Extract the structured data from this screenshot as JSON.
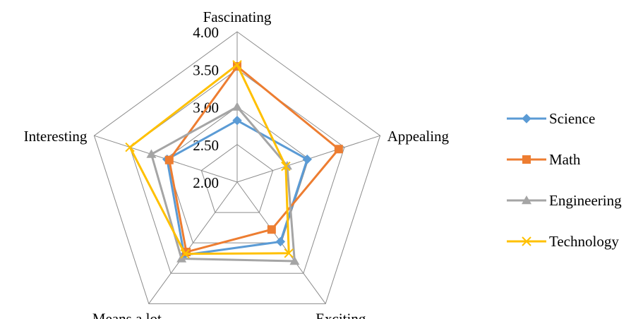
{
  "chart_data": {
    "type": "radar",
    "categories": [
      "Fascinating",
      "Appealing",
      "Exciting",
      "Means a lot",
      "Interesting"
    ],
    "rmin": 2.0,
    "rmax": 4.0,
    "ticks": [
      2.0,
      2.5,
      3.0,
      3.5,
      4.0
    ],
    "tick_labels": [
      "2.00",
      "2.50",
      "3.00",
      "3.50",
      "4.00"
    ],
    "grid": true,
    "legend_position": "right",
    "series": [
      {
        "name": "Science",
        "values": [
          2.82,
          2.98,
          2.98,
          3.2,
          2.98
        ],
        "color": "#5B9BD5",
        "marker": "diamond"
      },
      {
        "name": "Math",
        "values": [
          3.54,
          3.42,
          2.78,
          3.15,
          2.95
        ],
        "color": "#ED7D31",
        "marker": "square"
      },
      {
        "name": "Engineering",
        "values": [
          3.0,
          2.7,
          3.3,
          3.26,
          3.2
        ],
        "color": "#A5A5A5",
        "marker": "triangle"
      },
      {
        "name": "Technology",
        "values": [
          3.56,
          2.68,
          3.17,
          3.18,
          3.5
        ],
        "color": "#FFC000",
        "marker": "x"
      }
    ]
  }
}
